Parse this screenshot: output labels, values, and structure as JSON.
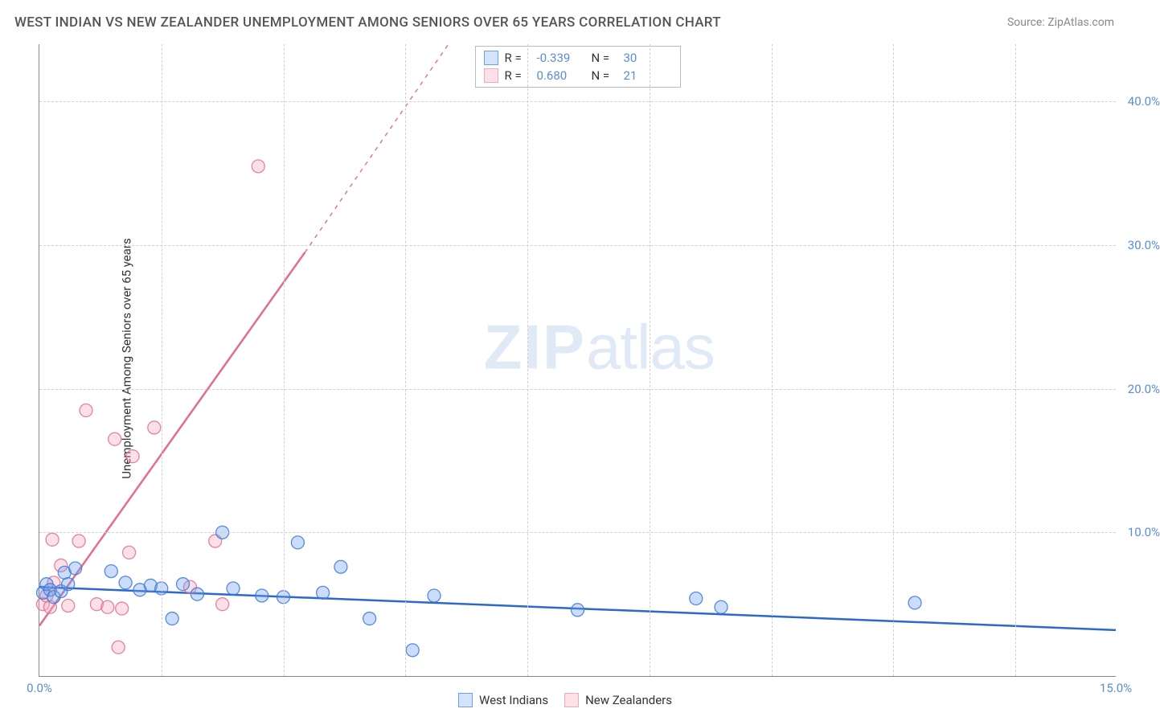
{
  "title": "WEST INDIAN VS NEW ZEALANDER UNEMPLOYMENT AMONG SENIORS OVER 65 YEARS CORRELATION CHART",
  "source": "Source: ZipAtlas.com",
  "ylabel": "Unemployment Among Seniors over 65 years",
  "watermark": {
    "part1": "ZIP",
    "part2": "atlas"
  },
  "chart": {
    "type": "scatter-with-regression",
    "background_color": "#ffffff",
    "grid_color": "#d0d0d0",
    "axis_color": "#888888",
    "text_color": "#333333",
    "tick_label_color": "#5b8dd6",
    "xlim": [
      0,
      15
    ],
    "ylim": [
      0,
      44
    ],
    "yticks": [
      10,
      20,
      30,
      40
    ],
    "ytick_labels": [
      "10.0%",
      "20.0%",
      "30.0%",
      "40.0%"
    ],
    "xticks": [
      0,
      15
    ],
    "xtick_labels": [
      "0.0%",
      "15.0%"
    ],
    "vgrid_positions": [
      1.7,
      3.4,
      5.1,
      6.8,
      8.5,
      10.2,
      11.9,
      13.6
    ],
    "marker_radius": 8,
    "marker_fill_opacity": 0.35,
    "marker_stroke_opacity": 0.85,
    "series": [
      {
        "key": "west_indians",
        "label": "West Indians",
        "color": "#6b9ff0",
        "stroke": "#3d78d6",
        "R": "-0.339",
        "N": "30",
        "regression": {
          "x1": 0,
          "y1": 6.2,
          "x2": 15,
          "y2": 3.2,
          "width": 2.5,
          "dash": ""
        },
        "points": [
          [
            0.05,
            5.8
          ],
          [
            0.1,
            6.4
          ],
          [
            0.15,
            6.0
          ],
          [
            0.2,
            5.5
          ],
          [
            0.3,
            5.9
          ],
          [
            0.35,
            7.2
          ],
          [
            0.4,
            6.4
          ],
          [
            0.5,
            7.5
          ],
          [
            1.0,
            7.3
          ],
          [
            1.2,
            6.5
          ],
          [
            1.4,
            6.0
          ],
          [
            1.55,
            6.3
          ],
          [
            1.7,
            6.1
          ],
          [
            1.85,
            4.0
          ],
          [
            2.0,
            6.4
          ],
          [
            2.2,
            5.7
          ],
          [
            2.55,
            10.0
          ],
          [
            2.7,
            6.1
          ],
          [
            3.1,
            5.6
          ],
          [
            3.4,
            5.5
          ],
          [
            3.6,
            9.3
          ],
          [
            3.95,
            5.8
          ],
          [
            4.2,
            7.6
          ],
          [
            4.6,
            4.0
          ],
          [
            5.2,
            1.8
          ],
          [
            5.5,
            5.6
          ],
          [
            7.5,
            4.6
          ],
          [
            9.15,
            5.4
          ],
          [
            9.5,
            4.8
          ],
          [
            12.2,
            5.1
          ]
        ]
      },
      {
        "key": "new_zealanders",
        "label": "New Zealanders",
        "color": "#f4a9bb",
        "stroke": "#e16e8f",
        "R": "0.680",
        "N": "21",
        "regression_solid": {
          "x1": 0,
          "y1": 3.5,
          "x2": 3.7,
          "y2": 29.5,
          "width": 2.5
        },
        "regression_dash": {
          "x1": 3.7,
          "y1": 29.5,
          "x2": 5.7,
          "y2": 44,
          "width": 1.4,
          "dash": "5,6"
        },
        "points": [
          [
            0.05,
            5.0
          ],
          [
            0.1,
            5.6
          ],
          [
            0.15,
            4.8
          ],
          [
            0.18,
            9.5
          ],
          [
            0.2,
            6.5
          ],
          [
            0.3,
            7.7
          ],
          [
            0.4,
            4.9
          ],
          [
            0.55,
            9.4
          ],
          [
            0.65,
            18.5
          ],
          [
            0.8,
            5.0
          ],
          [
            0.95,
            4.8
          ],
          [
            1.05,
            16.5
          ],
          [
            1.1,
            2.0
          ],
          [
            1.15,
            4.7
          ],
          [
            1.25,
            8.6
          ],
          [
            1.3,
            15.3
          ],
          [
            1.6,
            17.3
          ],
          [
            2.1,
            6.2
          ],
          [
            2.45,
            9.4
          ],
          [
            2.55,
            5.0
          ],
          [
            3.05,
            35.5
          ]
        ]
      }
    ]
  },
  "legend_top": {
    "rows": [
      {
        "swatch_fill": "#d4e4fb",
        "swatch_border": "#6b9ff0",
        "r_label": "R =",
        "r_val": "-0.339",
        "n_label": "N =",
        "n_val": "30"
      },
      {
        "swatch_fill": "#fde1e9",
        "swatch_border": "#f4a9bb",
        "r_label": "R =",
        "r_val": "0.680",
        "n_label": "N =",
        "n_val": "21"
      }
    ]
  },
  "legend_bottom": {
    "items": [
      {
        "swatch_fill": "#d4e4fb",
        "swatch_border": "#6b9ff0",
        "label": "West Indians"
      },
      {
        "swatch_fill": "#fde1e9",
        "swatch_border": "#f4a9bb",
        "label": "New Zealanders"
      }
    ]
  }
}
